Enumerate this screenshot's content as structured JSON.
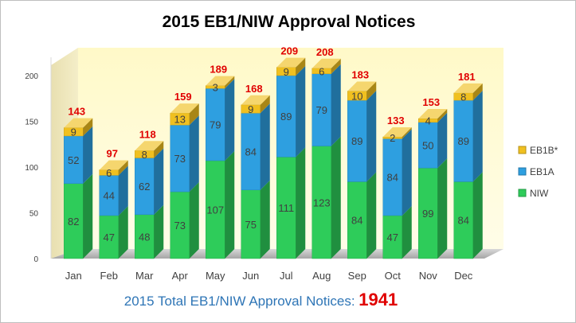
{
  "chart_data": {
    "type": "bar",
    "stacked": true,
    "three_d": true,
    "title": "2015 EB1/NIW Approval Notices",
    "categories": [
      "Jan",
      "Feb",
      "Mar",
      "Apr",
      "May",
      "Jun",
      "Jul",
      "Aug",
      "Sep",
      "Oct",
      "Nov",
      "Dec"
    ],
    "series": [
      {
        "name": "NIW",
        "color": "#2ecc5a",
        "values": [
          82,
          47,
          48,
          73,
          107,
          75,
          111,
          123,
          84,
          47,
          99,
          84
        ]
      },
      {
        "name": "EB1A",
        "color": "#2e9fe0",
        "values": [
          52,
          44,
          62,
          73,
          79,
          84,
          89,
          79,
          89,
          84,
          50,
          89
        ]
      },
      {
        "name": "EB1B*",
        "color": "#f0c020",
        "values": [
          9,
          6,
          8,
          13,
          3,
          9,
          9,
          6,
          10,
          2,
          4,
          8
        ]
      }
    ],
    "totals": [
      143,
      97,
      118,
      159,
      189,
      168,
      209,
      208,
      183,
      133,
      153,
      181
    ],
    "yticks": [
      0,
      50,
      100,
      150,
      200
    ],
    "ylim": [
      0,
      220
    ],
    "legend": "right",
    "grid": false
  },
  "footer": {
    "label": "2015 Total EB1/NIW Approval Notices: ",
    "total": "1941"
  }
}
